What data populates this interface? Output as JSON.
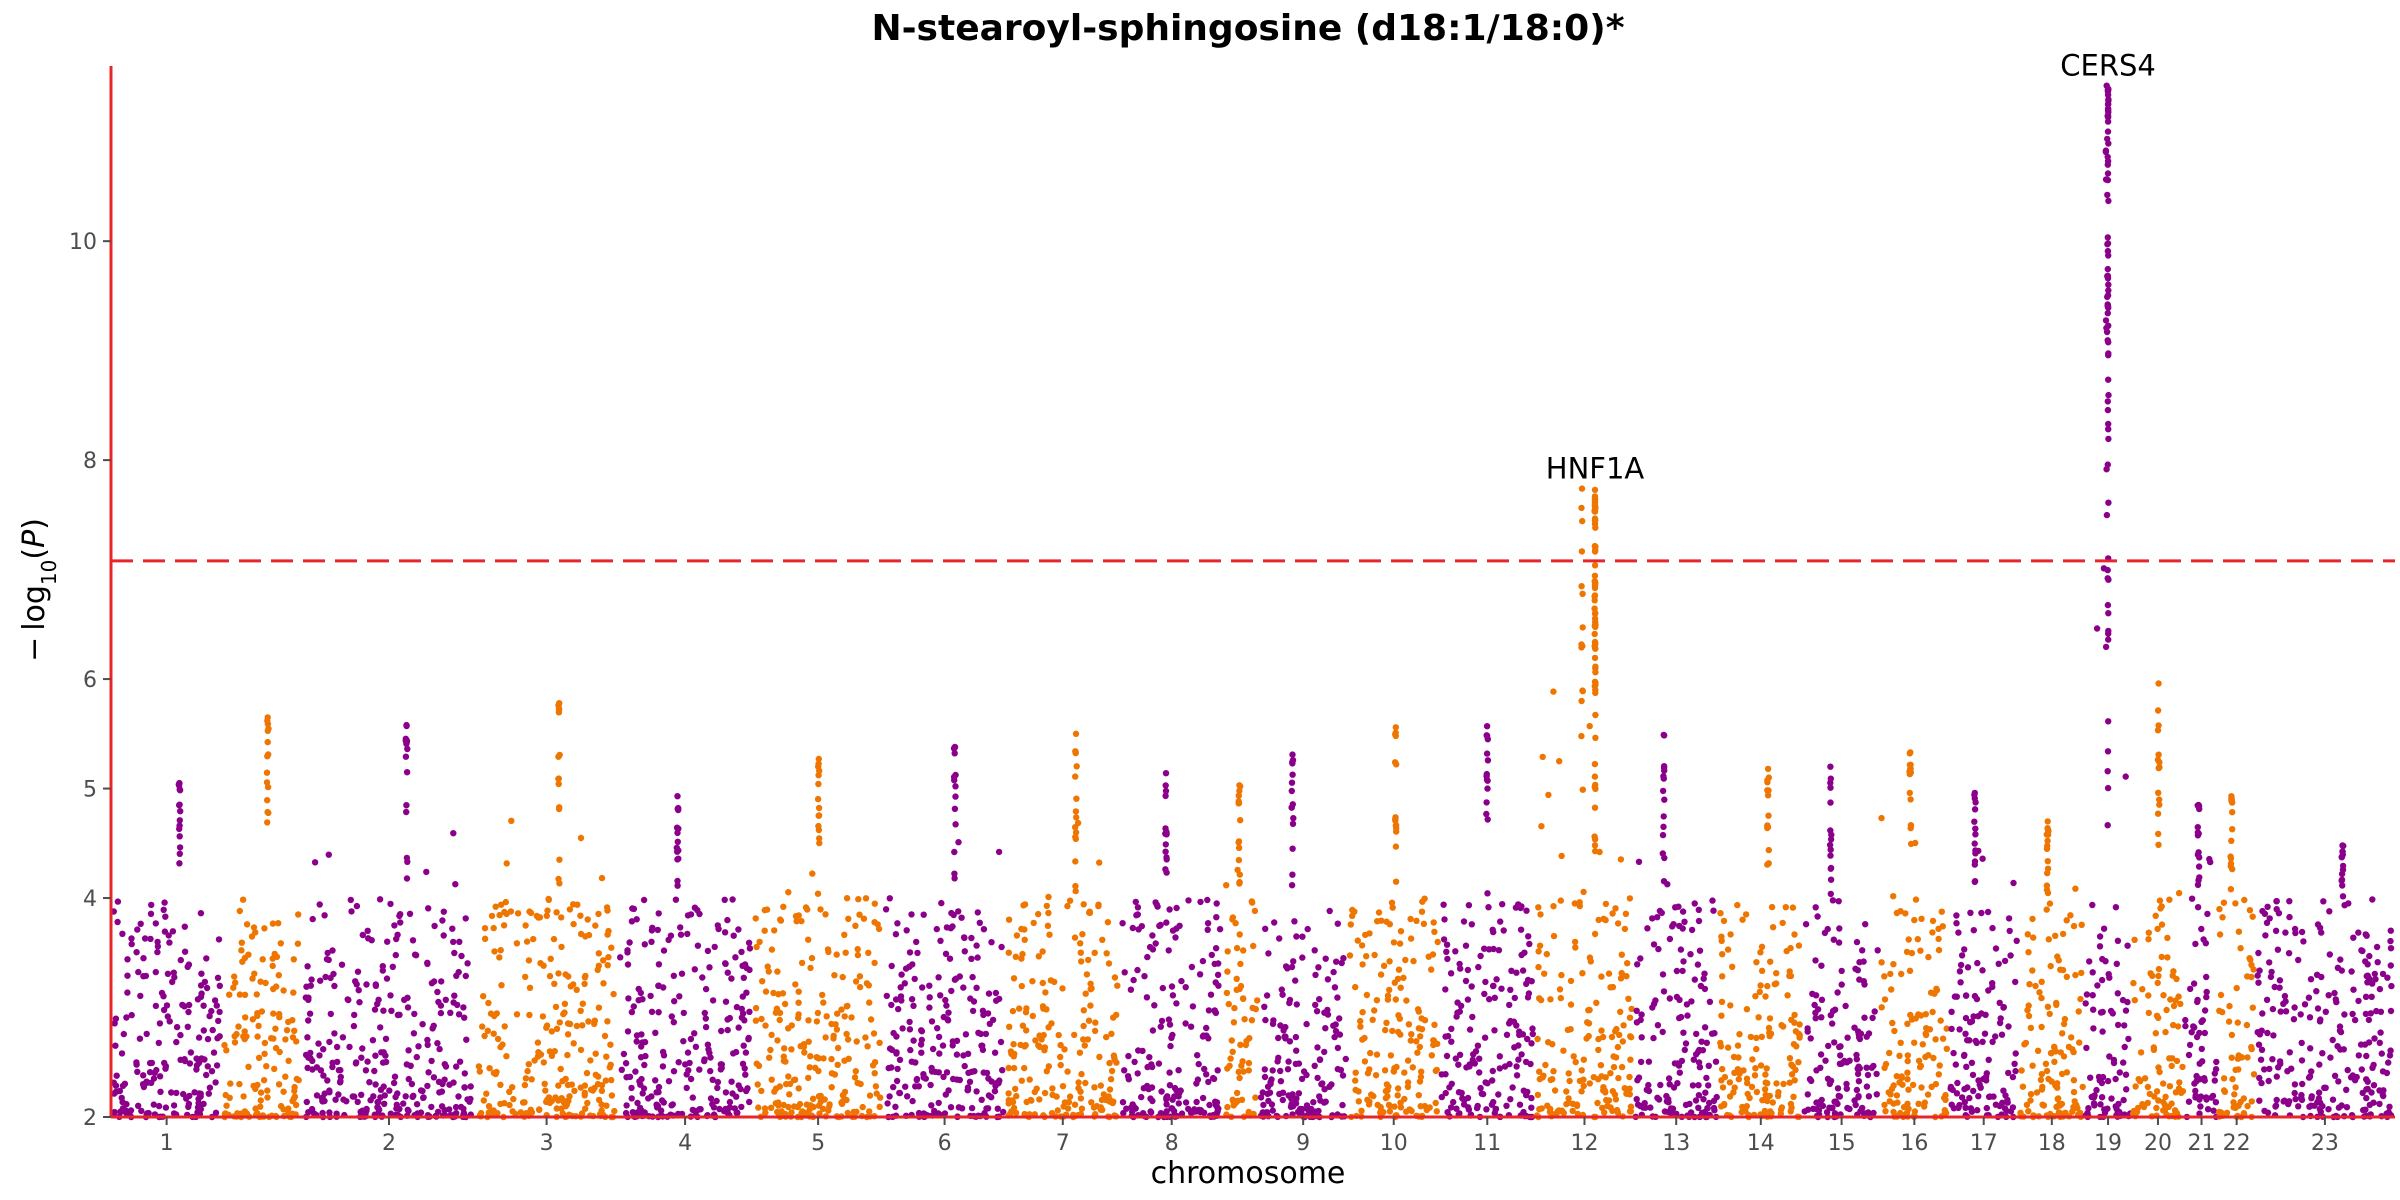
{
  "chart_data": {
    "type": "scatter",
    "title": "N-stearoyl-sphingosine (d18:1/18:0)*",
    "xlabel": "chromosome",
    "ylabel": "−log10(P)",
    "ylim": [
      2,
      11.6
    ],
    "y_ticks": [
      "2",
      "4",
      "5",
      "6",
      "8",
      "10"
    ],
    "significance_threshold": 7.08,
    "grid": false,
    "colors": {
      "odd_chromosome": "#8b008b",
      "even_chromosome": "#ee7600",
      "threshold": "#e8262a",
      "axis": "#e8262a"
    },
    "chromosomes": [
      {
        "label": "1",
        "start": 0.0,
        "end": 0.1315,
        "max": 5.05
      },
      {
        "label": "",
        "start": 0.1315,
        "end": 0.2258,
        "max": 5.65
      },
      {
        "label": "2",
        "start": 0.2258,
        "end": 0.4315,
        "max": 5.58
      },
      {
        "label": "3",
        "start": 0.4315,
        "end": 0.5984,
        "max": 5.78
      },
      {
        "label": "4",
        "start": 0.5984,
        "end": 0.7589,
        "max": 4.93
      },
      {
        "label": "5",
        "start": 0.7589,
        "end": 0.9129,
        "max": 5.27
      },
      {
        "label": "6",
        "start": 0.9129,
        "end": 1.0579,
        "max": 5.38
      },
      {
        "label": "7",
        "start": 1.0579,
        "end": 1.1924,
        "max": 5.5
      },
      {
        "label": "8",
        "start": 1.1924,
        "end": 1.3154,
        "max": 5.14
      },
      {
        "label": "",
        "start": 1.3154,
        "end": 1.3564,
        "max": 5.03
      },
      {
        "label": "9",
        "start": 1.3564,
        "end": 1.4622,
        "max": 5.31
      },
      {
        "label": "10",
        "start": 1.4622,
        "end": 1.5705,
        "max": 5.56
      },
      {
        "label": "11",
        "start": 1.5705,
        "end": 1.6834,
        "max": 5.57
      },
      {
        "label": "12",
        "start": 1.6834,
        "end": 1.8003,
        "max": 7.74
      },
      {
        "label": "13",
        "start": 1.8003,
        "end": 1.9003,
        "max": 5.49
      },
      {
        "label": "14",
        "start": 1.9003,
        "end": 2.0003,
        "max": 5.18
      },
      {
        "label": "15",
        "start": 2.0003,
        "end": 2.0913,
        "max": 5.2
      },
      {
        "label": "16",
        "start": 2.0913,
        "end": 2.1723,
        "max": 5.33
      },
      {
        "label": "17",
        "start": 2.1723,
        "end": 2.2553,
        "max": 4.96
      },
      {
        "label": "18",
        "start": 2.2553,
        "end": 2.3333,
        "max": 4.7
      },
      {
        "label": "19",
        "start": 2.3333,
        "end": 2.3883,
        "max": 11.42
      },
      {
        "label": "20",
        "start": 2.3883,
        "end": 2.4513,
        "max": 5.96
      },
      {
        "label": "21",
        "start": 2.4513,
        "end": 2.4913,
        "max": 4.85
      },
      {
        "label": "22",
        "start": 2.4913,
        "end": 2.5343,
        "max": 4.93
      },
      {
        "label": "23",
        "start": 2.5343,
        "end": 2.7,
        "max": 4.48
      }
    ],
    "annotations": [
      {
        "text": "HNF1A",
        "x": 1.7543,
        "y": 7.74
      },
      {
        "text": "CERS4",
        "x": 2.3608,
        "y": 11.42
      }
    ]
  }
}
